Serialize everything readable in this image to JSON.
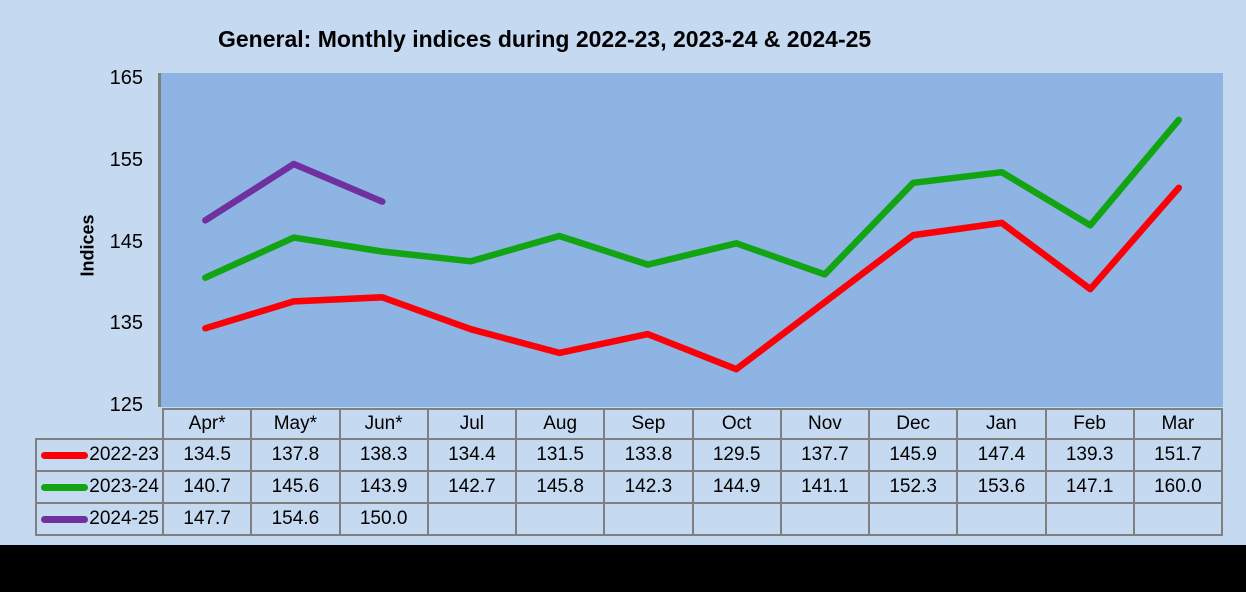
{
  "title": "General: Monthly indices during 2022-23, 2023-24 & 2024-25",
  "y_axis_label": "Indices",
  "colors": {
    "page_background": "#C5D9F1",
    "plot_background": "#8DB4E2",
    "axis_and_borders": "#808080",
    "series_2022_23": "#FB0007",
    "series_2023_24": "#12A412",
    "series_2024_25": "#7030A0",
    "bottom_strip": "#000000"
  },
  "chart_data": {
    "type": "line",
    "title": "General: Monthly indices during 2022-23, 2023-24 & 2024-25",
    "xlabel": "",
    "ylabel": "Indices",
    "categories": [
      "Apr*",
      "May*",
      "Jun*",
      "Jul",
      "Aug",
      "Sep",
      "Oct",
      "Nov",
      "Dec",
      "Jan",
      "Feb",
      "Mar"
    ],
    "series": [
      {
        "name": "2022-23",
        "color": "#FB0007",
        "values": [
          134.5,
          137.8,
          138.3,
          134.4,
          131.5,
          133.8,
          129.5,
          137.7,
          145.9,
          147.4,
          139.3,
          151.7
        ]
      },
      {
        "name": "2023-24",
        "color": "#12A412",
        "values": [
          140.7,
          145.6,
          143.9,
          142.7,
          145.8,
          142.3,
          144.9,
          141.1,
          152.3,
          153.6,
          147.1,
          160.0
        ]
      },
      {
        "name": "2024-25",
        "color": "#7030A0",
        "values": [
          147.7,
          154.6,
          150.0,
          null,
          null,
          null,
          null,
          null,
          null,
          null,
          null,
          null
        ]
      }
    ],
    "ylim": [
      125,
      165
    ],
    "yticks": [
      165,
      155,
      145,
      135,
      125
    ],
    "grid": false,
    "legend_position": "table-left"
  },
  "table": {
    "header": [
      "Apr*",
      "May*",
      "Jun*",
      "Jul",
      "Aug",
      "Sep",
      "Oct",
      "Nov",
      "Dec",
      "Jan",
      "Feb",
      "Mar"
    ],
    "rows": [
      {
        "label": "2022-23",
        "swatch_color": "#FB0007",
        "cells": [
          "134.5",
          "137.8",
          "138.3",
          "134.4",
          "131.5",
          "133.8",
          "129.5",
          "137.7",
          "145.9",
          "147.4",
          "139.3",
          "151.7"
        ]
      },
      {
        "label": "2023-24",
        "swatch_color": "#12A412",
        "cells": [
          "140.7",
          "145.6",
          "143.9",
          "142.7",
          "145.8",
          "142.3",
          "144.9",
          "141.1",
          "152.3",
          "153.6",
          "147.1",
          "160.0"
        ]
      },
      {
        "label": "2024-25",
        "swatch_color": "#7030A0",
        "cells": [
          "147.7",
          "154.6",
          "150.0",
          "",
          "",
          "",
          "",
          "",
          "",
          "",
          "",
          ""
        ]
      }
    ]
  }
}
